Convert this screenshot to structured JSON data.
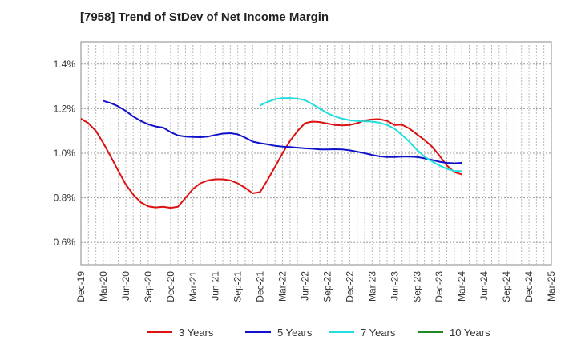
{
  "chart_data": {
    "type": "line",
    "title": "[7958]  Trend of StDev of Net Income Margin",
    "xlabel": "",
    "ylabel": "",
    "x_ticks": [
      "Dec-19",
      "Mar-20",
      "Jun-20",
      "Sep-20",
      "Dec-20",
      "Mar-21",
      "Jun-21",
      "Sep-21",
      "Dec-21",
      "Mar-22",
      "Jun-22",
      "Sep-22",
      "Dec-22",
      "Mar-23",
      "Jun-23",
      "Sep-23",
      "Dec-23",
      "Mar-24",
      "Jun-24",
      "Sep-24",
      "Dec-24",
      "Mar-25"
    ],
    "y_ticks": [
      {
        "value": 0.6,
        "label": "0.6%"
      },
      {
        "value": 0.8,
        "label": "0.8%"
      },
      {
        "value": 1.0,
        "label": "1.0%"
      },
      {
        "value": 1.2,
        "label": "1.2%"
      },
      {
        "value": 1.4,
        "label": "1.4%"
      }
    ],
    "xlim": [
      0,
      21
    ],
    "ylim": [
      0.5,
      1.5
    ],
    "grid": true,
    "legend_position": "bottom",
    "series": [
      {
        "name": "3 Years",
        "color": "#dd1111",
        "points": [
          [
            0,
            1.155
          ],
          [
            0.33,
            1.135
          ],
          [
            0.67,
            1.1
          ],
          [
            1,
            1.045
          ],
          [
            1.33,
            0.985
          ],
          [
            1.67,
            0.92
          ],
          [
            2,
            0.86
          ],
          [
            2.33,
            0.815
          ],
          [
            2.67,
            0.78
          ],
          [
            3,
            0.762
          ],
          [
            3.33,
            0.757
          ],
          [
            3.67,
            0.76
          ],
          [
            4,
            0.755
          ],
          [
            4.33,
            0.76
          ],
          [
            4.67,
            0.8
          ],
          [
            5,
            0.84
          ],
          [
            5.33,
            0.865
          ],
          [
            5.67,
            0.878
          ],
          [
            6,
            0.883
          ],
          [
            6.33,
            0.883
          ],
          [
            6.67,
            0.878
          ],
          [
            7,
            0.865
          ],
          [
            7.33,
            0.845
          ],
          [
            7.67,
            0.82
          ],
          [
            8,
            0.826
          ],
          [
            8.33,
            0.88
          ],
          [
            8.67,
            0.94
          ],
          [
            9,
            1.0
          ],
          [
            9.33,
            1.055
          ],
          [
            9.67,
            1.1
          ],
          [
            10,
            1.135
          ],
          [
            10.33,
            1.142
          ],
          [
            10.67,
            1.14
          ],
          [
            11,
            1.133
          ],
          [
            11.33,
            1.127
          ],
          [
            11.67,
            1.125
          ],
          [
            12,
            1.127
          ],
          [
            12.33,
            1.135
          ],
          [
            12.67,
            1.147
          ],
          [
            13,
            1.152
          ],
          [
            13.33,
            1.153
          ],
          [
            13.67,
            1.145
          ],
          [
            14,
            1.127
          ],
          [
            14.33,
            1.128
          ],
          [
            14.67,
            1.11
          ],
          [
            15,
            1.085
          ],
          [
            15.33,
            1.06
          ],
          [
            15.67,
            1.03
          ],
          [
            16,
            0.99
          ],
          [
            16.33,
            0.945
          ],
          [
            16.67,
            0.915
          ],
          [
            17,
            0.905
          ]
        ]
      },
      {
        "name": "5 Years",
        "color": "#1111cc",
        "points": [
          [
            1,
            1.235
          ],
          [
            1.33,
            1.225
          ],
          [
            1.67,
            1.21
          ],
          [
            2,
            1.19
          ],
          [
            2.33,
            1.165
          ],
          [
            2.67,
            1.145
          ],
          [
            3,
            1.13
          ],
          [
            3.33,
            1.12
          ],
          [
            3.67,
            1.115
          ],
          [
            4,
            1.095
          ],
          [
            4.33,
            1.08
          ],
          [
            4.67,
            1.075
          ],
          [
            5,
            1.073
          ],
          [
            5.33,
            1.072
          ],
          [
            5.67,
            1.075
          ],
          [
            6,
            1.082
          ],
          [
            6.33,
            1.088
          ],
          [
            6.67,
            1.09
          ],
          [
            7,
            1.085
          ],
          [
            7.33,
            1.07
          ],
          [
            7.67,
            1.052
          ],
          [
            8,
            1.045
          ],
          [
            8.33,
            1.04
          ],
          [
            8.67,
            1.033
          ],
          [
            9,
            1.03
          ],
          [
            9.33,
            1.028
          ],
          [
            9.67,
            1.025
          ],
          [
            10,
            1.022
          ],
          [
            10.33,
            1.02
          ],
          [
            10.67,
            1.017
          ],
          [
            11,
            1.017
          ],
          [
            11.33,
            1.018
          ],
          [
            11.67,
            1.017
          ],
          [
            12,
            1.013
          ],
          [
            12.33,
            1.007
          ],
          [
            12.67,
            1.0
          ],
          [
            13,
            0.992
          ],
          [
            13.33,
            0.986
          ],
          [
            13.67,
            0.983
          ],
          [
            14,
            0.983
          ],
          [
            14.33,
            0.985
          ],
          [
            14.67,
            0.985
          ],
          [
            15,
            0.983
          ],
          [
            15.33,
            0.977
          ],
          [
            15.67,
            0.97
          ],
          [
            16,
            0.962
          ],
          [
            16.33,
            0.957
          ],
          [
            16.67,
            0.955
          ],
          [
            17,
            0.957
          ]
        ]
      },
      {
        "name": "7 Years",
        "color": "#22dddd",
        "points": [
          [
            8,
            1.215
          ],
          [
            8.33,
            1.23
          ],
          [
            8.67,
            1.243
          ],
          [
            9,
            1.248
          ],
          [
            9.33,
            1.248
          ],
          [
            9.67,
            1.245
          ],
          [
            10,
            1.238
          ],
          [
            10.33,
            1.22
          ],
          [
            10.67,
            1.2
          ],
          [
            11,
            1.18
          ],
          [
            11.33,
            1.165
          ],
          [
            11.67,
            1.155
          ],
          [
            12,
            1.148
          ],
          [
            12.33,
            1.145
          ],
          [
            12.67,
            1.143
          ],
          [
            13,
            1.142
          ],
          [
            13.33,
            1.137
          ],
          [
            13.67,
            1.127
          ],
          [
            14,
            1.11
          ],
          [
            14.33,
            1.082
          ],
          [
            14.67,
            1.05
          ],
          [
            15,
            1.015
          ],
          [
            15.33,
            0.985
          ],
          [
            15.67,
            0.963
          ],
          [
            16,
            0.945
          ],
          [
            16.33,
            0.93
          ],
          [
            16.67,
            0.92
          ],
          [
            17,
            0.92
          ]
        ]
      },
      {
        "name": "10 Years",
        "color": "#228822",
        "points": []
      }
    ]
  }
}
